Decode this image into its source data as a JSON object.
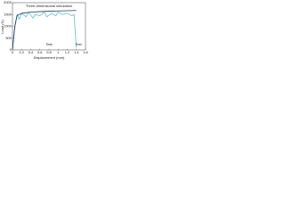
{
  "chart_data": {
    "type": "line",
    "x_label": "Displacement (mm)",
    "y_label": "Load (N)",
    "annotations": [
      "Three-dimensional simulation",
      "Test",
      "Test"
    ],
    "xlim": [
      0,
      1.6
    ],
    "xticks": [
      0,
      0.2,
      0.4,
      0.6,
      0.8,
      1,
      1.2,
      1.4,
      1.6
    ],
    "ylim": [
      0,
      2000
    ],
    "yticks": [
      0,
      500,
      1000,
      1500,
      2000
    ],
    "grid": false,
    "series": [
      {
        "name": "Test",
        "color": "#5bbcd6",
        "x": [
          0,
          0.05,
          0.1,
          0.15,
          0.2,
          0.3,
          0.35,
          0.45,
          0.5,
          0.6,
          0.7,
          0.75,
          0.85,
          0.95,
          1.0,
          1.1,
          1.2,
          1.3,
          1.35,
          1.38,
          1.4
        ],
        "values": [
          0,
          900,
          1500,
          1300,
          1550,
          1400,
          1600,
          1350,
          1500,
          1450,
          1600,
          1400,
          1550,
          1450,
          1600,
          1500,
          1550,
          1450,
          1500,
          600,
          100
        ]
      },
      {
        "name": "Three-dimensional simulation",
        "color": "#1f3a5a",
        "x": [
          0,
          0.05,
          0.1,
          0.2,
          0.4,
          0.6,
          0.8,
          1.0,
          1.2,
          1.4
        ],
        "values": [
          0,
          1000,
          1450,
          1550,
          1600,
          1620,
          1640,
          1650,
          1660,
          1670
        ]
      }
    ]
  }
}
